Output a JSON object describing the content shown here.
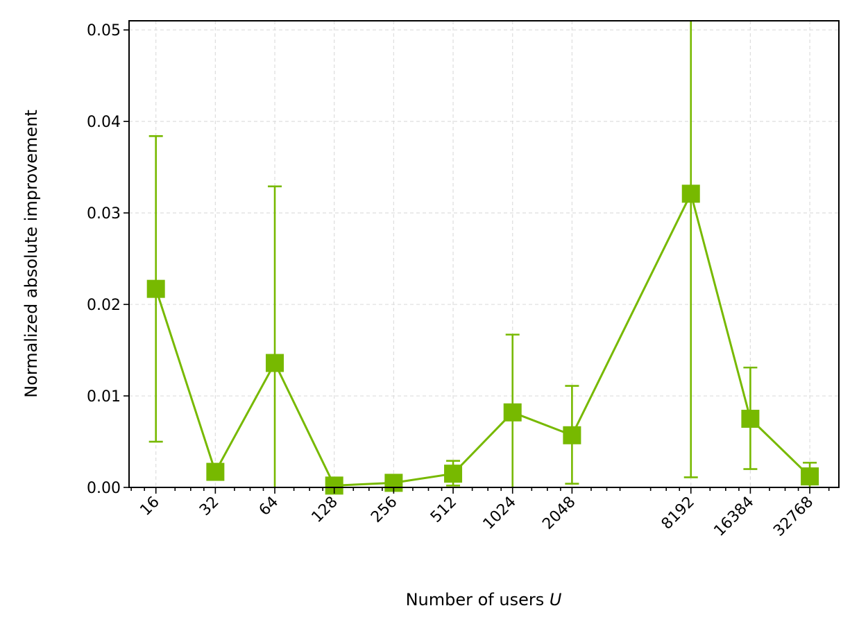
{
  "chart_data": {
    "type": "line",
    "title": "",
    "xlabel": "Number of users",
    "xlabel_var": "U",
    "ylabel": "Normalized absolute improvement",
    "x_scale": "log2",
    "xlim": [
      11.7,
      46000
    ],
    "ylim": [
      0,
      0.051
    ],
    "x_ticks": [
      16,
      32,
      64,
      128,
      256,
      512,
      1024,
      2048,
      8192,
      16384,
      32768
    ],
    "x_tick_labels": [
      "16",
      "32",
      "64",
      "128",
      "256",
      "512",
      "1024",
      "2048",
      "8192",
      "16384",
      "32768"
    ],
    "y_ticks": [
      0,
      0.01,
      0.02,
      0.03,
      0.04,
      0.05
    ],
    "y_tick_labels": [
      "0.00",
      "0.01",
      "0.02",
      "0.03",
      "0.04",
      "0.05"
    ],
    "grid": true,
    "color": "#77b900",
    "marker": "square",
    "series": [
      {
        "x": [
          16,
          32,
          64,
          128,
          256,
          512,
          1024,
          2048,
          8192,
          16384,
          32768
        ],
        "y": [
          0.0217,
          0.0017,
          0.0136,
          0.0002,
          0.0005,
          0.0015,
          0.0082,
          0.0057,
          0.0321,
          0.0075,
          0.0012
        ],
        "err_low": [
          0.005,
          0.0,
          0.0,
          0.0,
          0.0,
          0.0002,
          0.0,
          0.0004,
          0.0011,
          0.002,
          0.0
        ],
        "err_high": [
          0.0384,
          0.0,
          0.0329,
          0.0,
          0.0,
          0.0029,
          0.0167,
          0.0111,
          0.051,
          0.0131,
          0.0027
        ],
        "err_caps": [
          true,
          false,
          true,
          false,
          false,
          true,
          true,
          true,
          true,
          true,
          true
        ]
      }
    ]
  }
}
